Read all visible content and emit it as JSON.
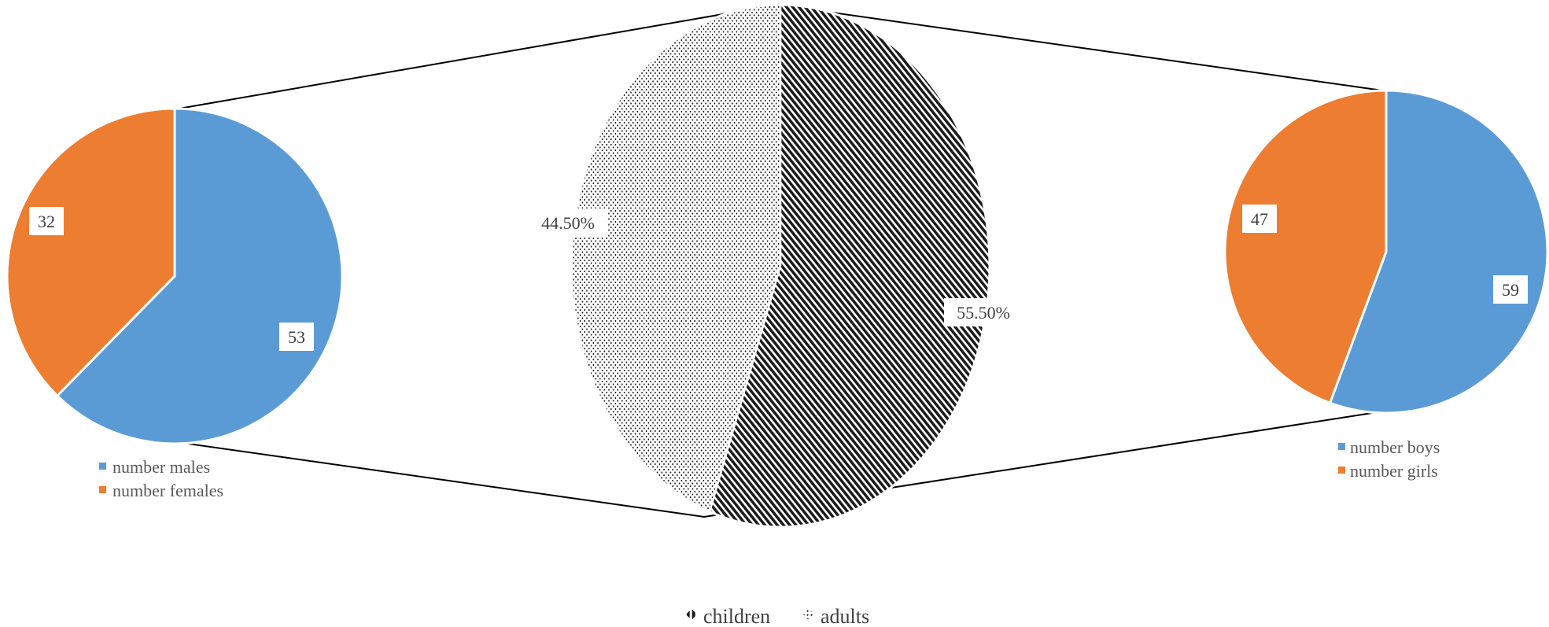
{
  "chart_data": [
    {
      "type": "pie",
      "categories": [
        "children",
        "adults"
      ],
      "values": [
        55.5,
        44.5
      ],
      "data_labels": [
        "55.50%",
        "44.50%"
      ],
      "legend": [
        "children",
        "adults"
      ],
      "legend_position": "bottom",
      "patterns": [
        "diagonal-hatch",
        "dots"
      ]
    },
    {
      "type": "pie",
      "categories": [
        "number males",
        "number females"
      ],
      "values": [
        53,
        32
      ],
      "data_labels": [
        "53",
        "32"
      ],
      "legend": [
        "number males",
        "number females"
      ],
      "legend_position": "bottom",
      "colors": [
        "#5b9bd5",
        "#ed7d31"
      ]
    },
    {
      "type": "pie",
      "categories": [
        "number boys",
        "number girls"
      ],
      "values": [
        59,
        47
      ],
      "data_labels": [
        "59",
        "47"
      ],
      "legend": [
        "number boys",
        "number girls"
      ],
      "legend_position": "bottom",
      "colors": [
        "#5b9bd5",
        "#ed7d31"
      ]
    }
  ]
}
